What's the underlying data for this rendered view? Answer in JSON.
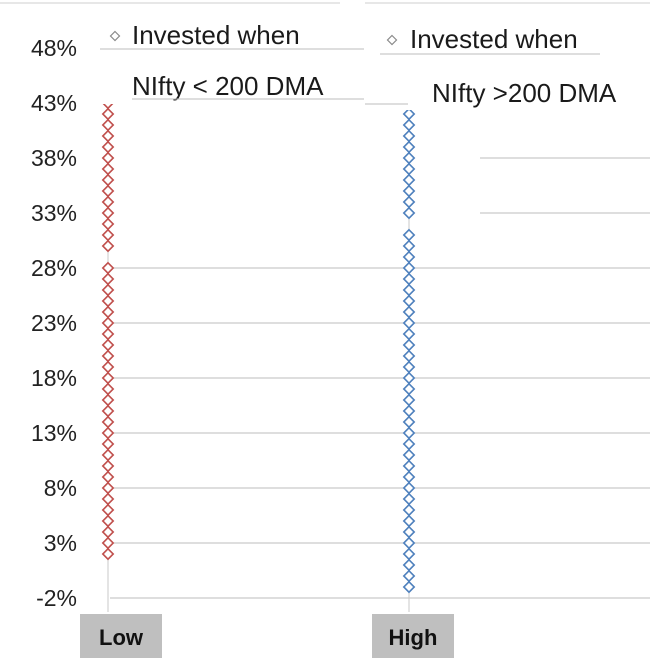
{
  "chart_data": {
    "type": "scatter",
    "categories": [
      "Low",
      "High"
    ],
    "yticks": [
      "-2%",
      "3%",
      "8%",
      "13%",
      "18%",
      "23%",
      "28%",
      "33%",
      "38%",
      "43%",
      "48%"
    ],
    "ylim": [
      -2,
      48
    ],
    "grid": true,
    "series": [
      {
        "name": "Invested when NIfty < 200 DMA",
        "legend_lines": [
          "Invested when",
          "NIfty < 200 DMA"
        ],
        "category": "Low",
        "color": "#c0504d",
        "values": [
          2,
          3,
          4,
          5,
          6,
          7,
          8,
          9,
          10,
          11,
          12,
          13,
          14,
          15,
          16,
          17,
          18,
          19,
          20,
          21,
          22,
          23,
          24,
          25,
          26,
          27,
          28,
          30,
          31,
          32,
          33,
          34,
          35,
          36,
          37,
          38,
          39,
          40,
          41,
          42,
          43,
          44,
          45
        ]
      },
      {
        "name": "Invested when NIfty >200 DMA",
        "legend_lines": [
          "Invested when",
          "NIfty >200 DMA"
        ],
        "category": "High",
        "color": "#4f81bd",
        "values": [
          -1,
          0,
          1,
          2,
          3,
          4,
          5,
          6,
          7,
          8,
          9,
          10,
          11,
          12,
          13,
          14,
          15,
          16,
          17,
          18,
          19,
          20,
          21,
          22,
          23,
          24,
          25,
          26,
          27,
          28,
          29,
          30,
          31,
          33,
          34,
          35,
          36,
          37,
          38,
          39,
          40,
          41,
          42
        ]
      }
    ]
  }
}
